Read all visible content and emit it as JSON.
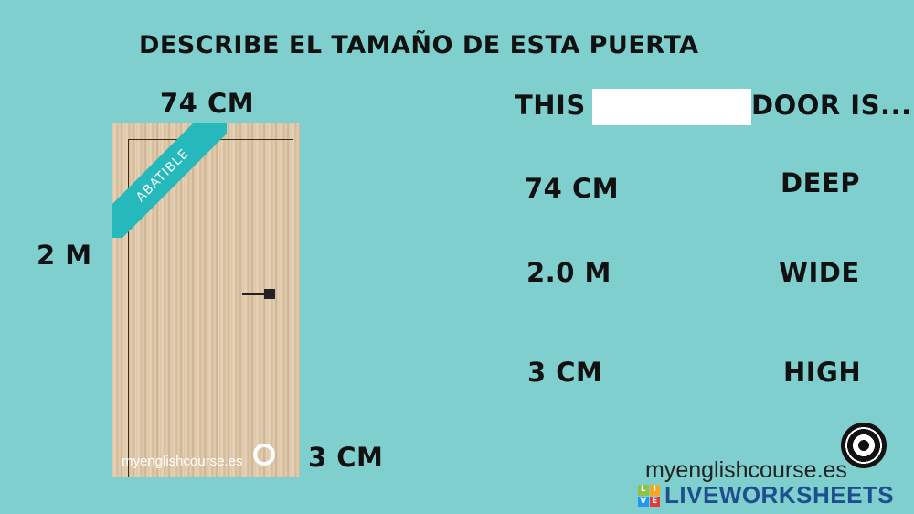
{
  "title": "DESCRIBE EL TAMAÑO DE ESTA PUERTA",
  "door": {
    "width_label": "74 CM",
    "height_label": "2 M",
    "depth_label": "3 CM",
    "ribbon": "ABATIBLE",
    "watermark": "myenglishcourse.es"
  },
  "sentence": {
    "before": "THIS",
    "blank_value": "",
    "after": "DOOR IS..."
  },
  "measures": [
    "74 CM",
    "2.0 M",
    "3 CM"
  ],
  "adjectives": [
    "DEEP",
    "WIDE",
    "HIGH"
  ],
  "footer": {
    "brand": "myenglishcourse.es",
    "platform": "LIVEWORKSHEETS",
    "platform_icon_letters": [
      "L",
      "I",
      "V",
      "E"
    ]
  },
  "colors": {
    "background": "#7fcfcf",
    "ribbon": "#25b9bc",
    "platform": "#1e4e8c"
  }
}
